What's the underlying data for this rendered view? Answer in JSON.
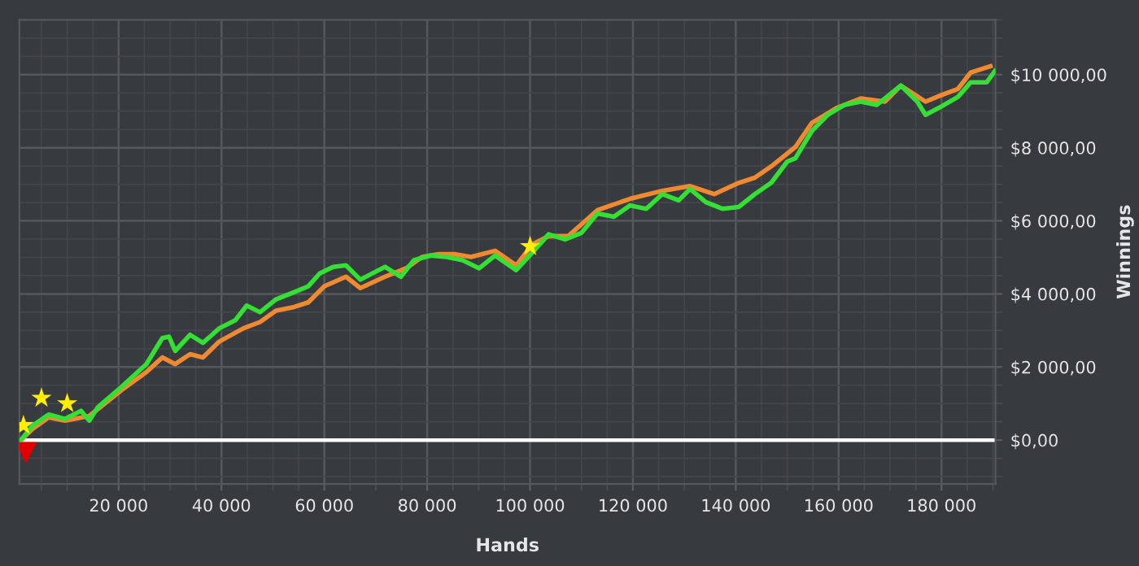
{
  "chart_data": {
    "type": "line",
    "xlabel": "Hands",
    "ylabel": "Winnings",
    "xlim": [
      700,
      190500
    ],
    "ylim": [
      -1200,
      11500
    ],
    "xticks": [
      {
        "value": 20000,
        "label": "20 000"
      },
      {
        "value": 40000,
        "label": "40 000"
      },
      {
        "value": 60000,
        "label": "60 000"
      },
      {
        "value": 80000,
        "label": "80 000"
      },
      {
        "value": 100000,
        "label": "100 000"
      },
      {
        "value": 120000,
        "label": "120 000"
      },
      {
        "value": 140000,
        "label": "140 000"
      },
      {
        "value": 160000,
        "label": "160 000"
      },
      {
        "value": 180000,
        "label": "180 000"
      }
    ],
    "yticks": [
      {
        "value": 0,
        "label": "$0,00"
      },
      {
        "value": 2000,
        "label": "$2 000,00"
      },
      {
        "value": 4000,
        "label": "$4 000,00"
      },
      {
        "value": 6000,
        "label": "$6 000,00"
      },
      {
        "value": 8000,
        "label": "$8 000,00"
      },
      {
        "value": 10000,
        "label": "$10 000,00"
      }
    ],
    "grid": true,
    "marker": "none",
    "line_style": "solid",
    "ref_lines": [
      {
        "axis": "y",
        "value": 0,
        "color": "#ffffff"
      }
    ],
    "series": [
      {
        "color": "#f08a30",
        "x": [
          1000,
          3300,
          6400,
          9600,
          14300,
          20600,
          25400,
          28500,
          31000,
          33900,
          36400,
          39600,
          44300,
          47500,
          50600,
          53800,
          56900,
          60000,
          64200,
          67000,
          71800,
          75900,
          79000,
          82200,
          85300,
          88500,
          93200,
          97300,
          100500,
          103600,
          107400,
          113100,
          119400,
          125700,
          131100,
          135800,
          140600,
          143700,
          146900,
          151600,
          154800,
          159500,
          164300,
          169000,
          172100,
          176900,
          180000,
          183200,
          185700,
          189500
        ],
        "values": [
          0,
          310,
          620,
          530,
          660,
          1370,
          1860,
          2260,
          2080,
          2350,
          2260,
          2700,
          3060,
          3230,
          3540,
          3630,
          3770,
          4210,
          4470,
          4160,
          4470,
          4700,
          5010,
          5090,
          5090,
          5010,
          5180,
          4780,
          5360,
          5580,
          5580,
          6290,
          6600,
          6820,
          6950,
          6730,
          7040,
          7180,
          7490,
          8020,
          8680,
          9080,
          9350,
          9260,
          9700,
          9260,
          9440,
          9610,
          10060,
          10230
        ]
      },
      {
        "color": "#33e033",
        "x": [
          1000,
          3300,
          6400,
          9600,
          12700,
          14300,
          15900,
          20600,
          25400,
          28500,
          29800,
          31000,
          33900,
          36400,
          39600,
          42700,
          44900,
          47500,
          50600,
          53800,
          56900,
          59100,
          61700,
          64200,
          67000,
          71800,
          74900,
          77400,
          80600,
          83800,
          86900,
          90100,
          93200,
          97300,
          100500,
          103600,
          106800,
          110000,
          113100,
          116300,
          119400,
          122600,
          125700,
          128900,
          131100,
          134200,
          137400,
          140600,
          143700,
          146900,
          150000,
          151600,
          154800,
          157900,
          161100,
          164300,
          167400,
          172100,
          175300,
          176900,
          180000,
          183200,
          185700,
          188800,
          190400
        ],
        "values": [
          0,
          400,
          700,
          580,
          800,
          530,
          890,
          1460,
          2080,
          2790,
          2830,
          2440,
          2880,
          2660,
          3060,
          3280,
          3680,
          3500,
          3850,
          4030,
          4210,
          4560,
          4740,
          4780,
          4390,
          4740,
          4470,
          4920,
          5050,
          5010,
          4920,
          4700,
          5050,
          4650,
          5140,
          5630,
          5490,
          5670,
          6200,
          6110,
          6420,
          6330,
          6730,
          6560,
          6870,
          6510,
          6330,
          6380,
          6730,
          7040,
          7620,
          7710,
          8460,
          8900,
          9170,
          9260,
          9170,
          9700,
          9260,
          8900,
          9130,
          9390,
          9790,
          9790,
          10100
        ]
      },
      {
        "type": "scatter",
        "marker": "star",
        "color": "#ffee00",
        "x": [
          1500,
          5000,
          10000,
          100000
        ],
        "values": [
          400,
          1150,
          1000,
          5300
        ]
      },
      {
        "type": "scatter",
        "marker": "triangle",
        "color": "#e00000",
        "x": [
          2000
        ],
        "values": [
          -350
        ]
      }
    ]
  }
}
